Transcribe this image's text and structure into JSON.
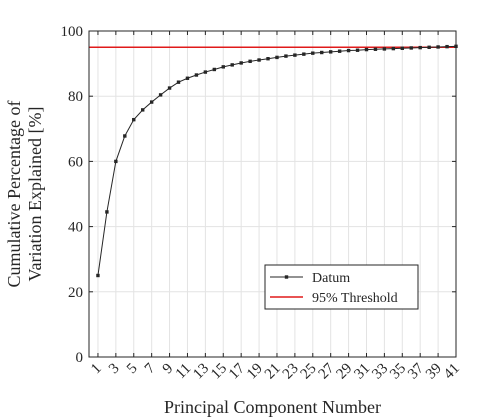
{
  "chart_data": {
    "type": "line",
    "xlabel": "Principal Component Number",
    "ylabel": [
      "Cumulative Percentage of",
      "Variation Explained [%]"
    ],
    "xlim": [
      0,
      41
    ],
    "ylim": [
      0,
      100
    ],
    "x_ticks": [
      1,
      3,
      5,
      7,
      9,
      11,
      13,
      15,
      17,
      19,
      21,
      23,
      25,
      27,
      29,
      31,
      33,
      35,
      37,
      39,
      41
    ],
    "x_tick_labels": [
      "1",
      "3",
      "5",
      "7",
      "9",
      "11",
      "13",
      "15",
      "17",
      "19",
      "21",
      "23",
      "25",
      "27",
      "29",
      "31",
      "33",
      "35",
      "37",
      "39",
      "41"
    ],
    "y_ticks": [
      0,
      20,
      40,
      60,
      80,
      100
    ],
    "y_tick_labels": [
      "0",
      "20",
      "40",
      "60",
      "80",
      "100"
    ],
    "grid": true,
    "legend_position": "bottom-right",
    "series": [
      {
        "name": "Datum",
        "color": "#262626",
        "marker": "square",
        "x": [
          1,
          2,
          3,
          4,
          5,
          6,
          7,
          8,
          9,
          10,
          11,
          12,
          13,
          14,
          15,
          16,
          17,
          18,
          19,
          20,
          21,
          22,
          23,
          24,
          25,
          26,
          27,
          28,
          29,
          30,
          31,
          32,
          33,
          34,
          35,
          36,
          37,
          38,
          39,
          40,
          41
        ],
        "y": [
          25.0,
          44.5,
          60.0,
          67.8,
          72.8,
          75.8,
          78.2,
          80.4,
          82.5,
          84.3,
          85.5,
          86.5,
          87.4,
          88.2,
          89.0,
          89.6,
          90.2,
          90.7,
          91.1,
          91.5,
          91.9,
          92.3,
          92.6,
          92.9,
          93.2,
          93.4,
          93.6,
          93.8,
          94.0,
          94.1,
          94.3,
          94.4,
          94.5,
          94.6,
          94.7,
          94.8,
          94.9,
          95.0,
          95.1,
          95.2,
          95.3
        ]
      },
      {
        "name": "95% Threshold",
        "color": "#e01a1a",
        "marker": "none",
        "x": [
          0,
          41
        ],
        "y": [
          95,
          95
        ]
      }
    ]
  }
}
